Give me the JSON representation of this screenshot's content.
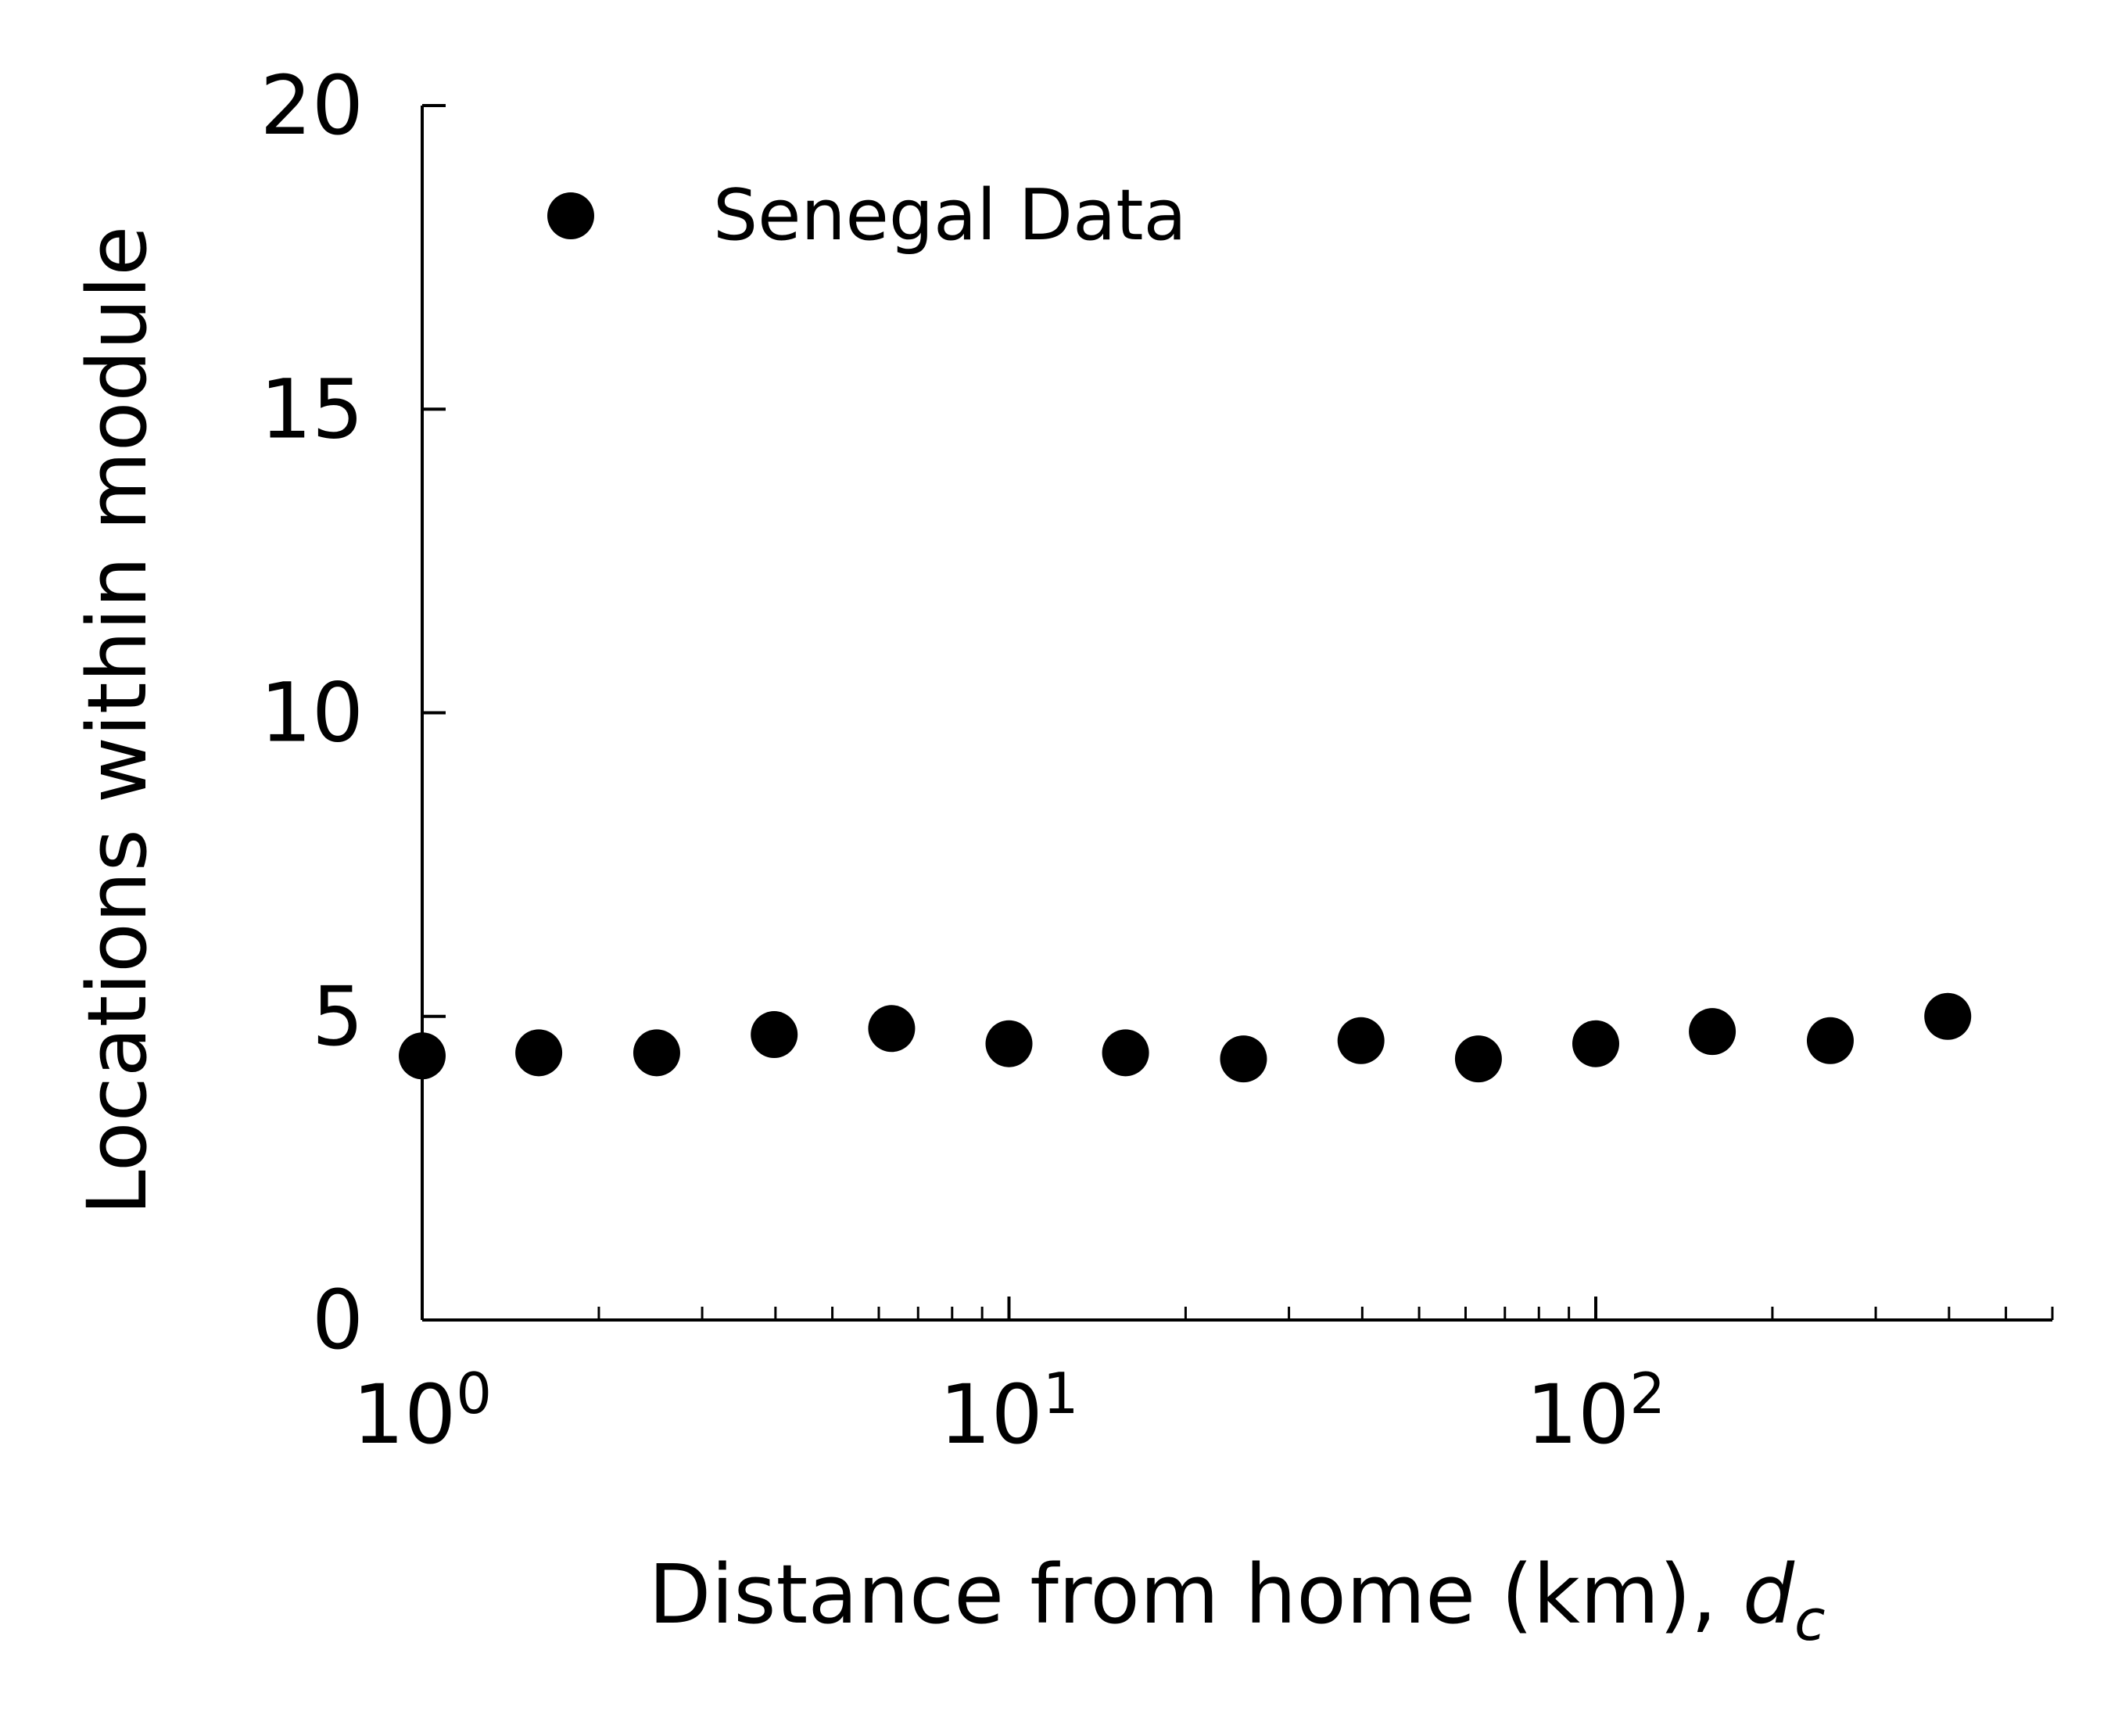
{
  "chart_data": {
    "type": "scatter",
    "xlabel": "Distance from home (km), ",
    "xlabel_var": "d",
    "xlabel_sub": "c",
    "ylabel": "Locations within module",
    "x_scale": "log",
    "xlim": [
      1,
      600
    ],
    "ylim": [
      0,
      20
    ],
    "grid": false,
    "legend_position": "top-left",
    "x_ticks": [
      {
        "value": 1,
        "base": "10",
        "exp": "0"
      },
      {
        "value": 10,
        "base": "10",
        "exp": "1"
      },
      {
        "value": 100,
        "base": "10",
        "exp": "2"
      }
    ],
    "y_ticks": [
      {
        "value": 0,
        "label": "0"
      },
      {
        "value": 5,
        "label": "5"
      },
      {
        "value": 10,
        "label": "10"
      },
      {
        "value": 15,
        "label": "15"
      },
      {
        "value": 20,
        "label": "20"
      }
    ],
    "series": [
      {
        "name": "Senegal Data",
        "color": "#000000",
        "marker": "circle",
        "points": [
          {
            "x": 1.0,
            "y": 4.35
          },
          {
            "x": 1.58,
            "y": 4.4
          },
          {
            "x": 2.51,
            "y": 4.4
          },
          {
            "x": 3.98,
            "y": 4.7
          },
          {
            "x": 6.31,
            "y": 4.8
          },
          {
            "x": 10.0,
            "y": 4.55
          },
          {
            "x": 15.8,
            "y": 4.4
          },
          {
            "x": 25.1,
            "y": 4.3
          },
          {
            "x": 39.8,
            "y": 4.6
          },
          {
            "x": 63.1,
            "y": 4.3
          },
          {
            "x": 100.0,
            "y": 4.55
          },
          {
            "x": 158.0,
            "y": 4.75
          },
          {
            "x": 251.0,
            "y": 4.6
          },
          {
            "x": 398.0,
            "y": 5.0
          }
        ]
      }
    ]
  }
}
